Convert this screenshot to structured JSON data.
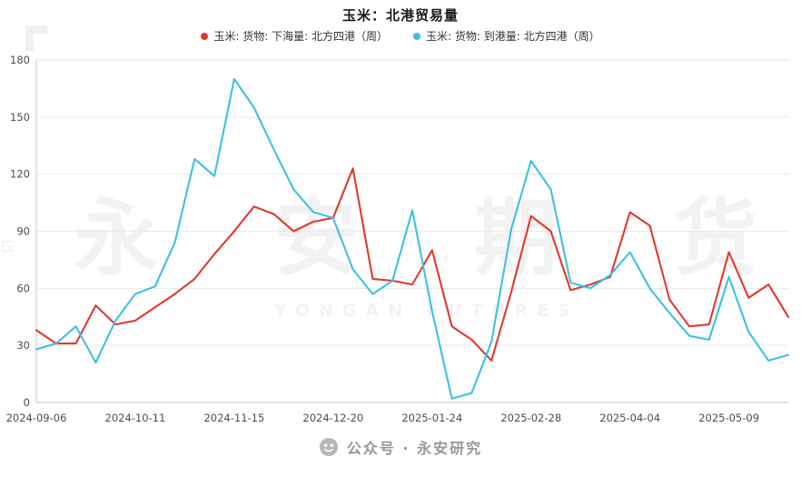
{
  "header": {
    "title": "玉米：北港贸易量"
  },
  "watermark": {
    "text": "永 安 期 货",
    "subtext": "YONGAN FUTURES"
  },
  "footer": {
    "text": "公众号 · 永安研究"
  },
  "chart_data": {
    "type": "line",
    "title": "玉米：北港贸易量",
    "grid": "horizontal",
    "legend_position": "top",
    "ylim": [
      0,
      180
    ],
    "y_ticks": [
      0,
      30,
      60,
      90,
      120,
      150,
      180
    ],
    "x_tick_indices": [
      0,
      5,
      10,
      15,
      20,
      25,
      30,
      35
    ],
    "x_tick_labels": [
      "2024-09-06",
      "2024-10-11",
      "2024-11-15",
      "2024-12-20",
      "2025-01-24",
      "2025-02-28",
      "2025-04-04",
      "2025-05-09"
    ],
    "x": [
      "2024-09-06",
      "2024-09-13",
      "2024-09-20",
      "2024-09-27",
      "2024-10-04",
      "2024-10-11",
      "2024-10-18",
      "2024-10-25",
      "2024-11-01",
      "2024-11-08",
      "2024-11-15",
      "2024-11-22",
      "2024-11-29",
      "2024-12-06",
      "2024-12-13",
      "2024-12-20",
      "2024-12-27",
      "2025-01-03",
      "2025-01-10",
      "2025-01-17",
      "2025-01-24",
      "2025-01-31",
      "2025-02-07",
      "2025-02-14",
      "2025-02-21",
      "2025-02-28",
      "2025-03-07",
      "2025-03-14",
      "2025-03-21",
      "2025-03-28",
      "2025-04-04",
      "2025-04-11",
      "2025-04-18",
      "2025-04-25",
      "2025-05-02",
      "2025-05-09",
      "2025-05-16",
      "2025-05-23",
      "2025-05-30"
    ],
    "series": [
      {
        "name": "玉米: 货物: 下海量: 北方四港（周）",
        "color": "#e0392c",
        "values": [
          38,
          31,
          31,
          51,
          41,
          43,
          50,
          57,
          65,
          78,
          90,
          103,
          99,
          90,
          95,
          97,
          123,
          65,
          64,
          62,
          80,
          40,
          33,
          22,
          58,
          98,
          90,
          59,
          62,
          66,
          100,
          93,
          54,
          40,
          41,
          79,
          55,
          62,
          45
        ]
      },
      {
        "name": "玉米: 货物: 到港量: 北方四港（周）",
        "color": "#3ec0e6",
        "values": [
          28,
          31,
          40,
          21,
          43,
          57,
          61,
          84,
          128,
          119,
          170,
          155,
          133,
          112,
          100,
          97,
          70,
          57,
          64,
          101,
          48,
          2,
          5,
          32,
          91,
          127,
          112,
          63,
          60,
          67,
          79,
          60,
          47,
          35,
          33,
          66,
          37,
          22,
          25
        ]
      }
    ]
  }
}
